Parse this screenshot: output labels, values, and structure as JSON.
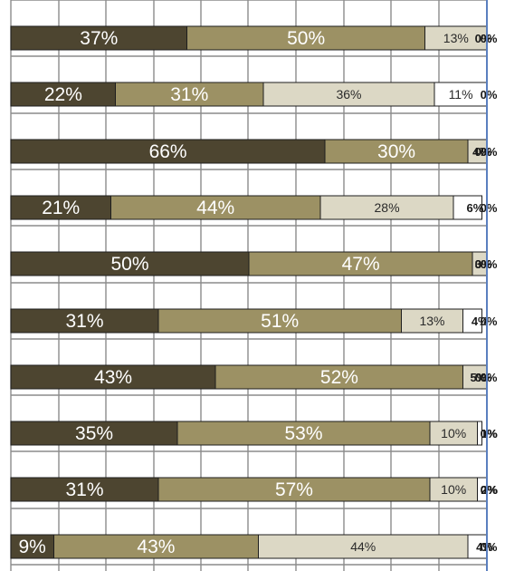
{
  "chart_data": {
    "type": "bar",
    "orientation": "horizontal",
    "stacked": true,
    "percent": true,
    "title": "",
    "xlabel": "",
    "ylabel": "",
    "xlim": [
      0,
      100
    ],
    "grid": true,
    "legend": "none",
    "colors": [
      "#4d4530",
      "#9c9164",
      "#dcd8c5",
      "#ffffff",
      "#ffffff"
    ],
    "rows": [
      [
        37,
        50,
        13,
        0,
        0
      ],
      [
        22,
        31,
        36,
        11,
        0
      ],
      [
        66,
        30,
        4,
        0,
        0
      ],
      [
        21,
        44,
        28,
        6,
        0
      ],
      [
        50,
        47,
        3,
        0,
        0
      ],
      [
        31,
        51,
        13,
        4,
        0
      ],
      [
        43,
        52,
        5,
        0,
        0
      ],
      [
        35,
        53,
        10,
        1,
        0
      ],
      [
        31,
        57,
        10,
        2,
        0
      ],
      [
        9,
        43,
        44,
        4,
        0
      ]
    ],
    "labels": [
      [
        "37%",
        "50%",
        "13%",
        "0%",
        "0%"
      ],
      [
        "22%",
        "31%",
        "36%",
        "11%",
        "0%"
      ],
      [
        "66%",
        "30%",
        "4%",
        "0%",
        "0%"
      ],
      [
        "21%",
        "44%",
        "28%",
        "6%",
        "0%"
      ],
      [
        "50%",
        "47%",
        "3%",
        "0%",
        "0%"
      ],
      [
        "31%",
        "51%",
        "13%",
        "4%",
        "0%"
      ],
      [
        "43%",
        "52%",
        "5%",
        "0%",
        "0%"
      ],
      [
        "35%",
        "53%",
        "10%",
        "1%",
        "0%"
      ],
      [
        "31%",
        "57%",
        "10%",
        "2%",
        "0%"
      ],
      [
        "9%",
        "43%",
        "44%",
        "4%",
        "0%"
      ]
    ]
  }
}
